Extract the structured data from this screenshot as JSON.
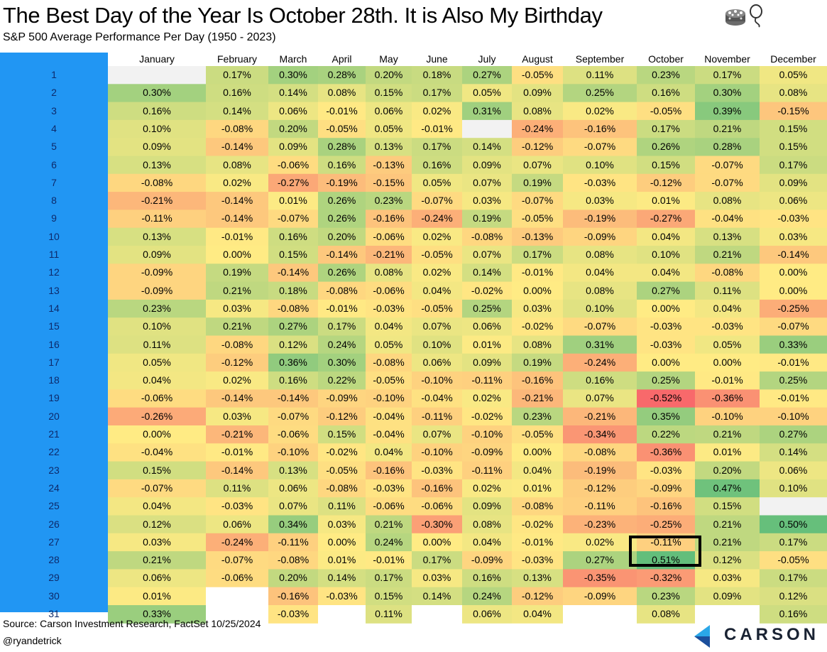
{
  "title": "The Best Day of the Year Is October 28th. It is Also My Birthday",
  "subtitle": "S&P 500 Average Performance Per Day (1950 - 2023)",
  "footer": {
    "source": "Source: Carson Investment Research, FactSet 10/25/2024",
    "handle": "@ryandetrick",
    "logo": "CARSON"
  },
  "icons": [
    "cake-icon",
    "balloon-icon",
    "carson-logo-icon"
  ],
  "colors": {
    "row_label_bar": "#2196f3",
    "scale_negative": "#f8696b",
    "scale_mid": "#ffeb84",
    "scale_positive": "#63be7b",
    "empty_cell": "#f2f2f2"
  },
  "chart_data": {
    "type": "heatmap",
    "title": "The Best Day of the Year Is October 28th. It is Also My Birthday",
    "subtitle": "S&P 500 Average Performance Per Day (1950 - 2023)",
    "columns": [
      "January",
      "February",
      "March",
      "April",
      "May",
      "June",
      "July",
      "August",
      "September",
      "October",
      "November",
      "December"
    ],
    "rows": [
      "1",
      "2",
      "3",
      "4",
      "5",
      "6",
      "7",
      "8",
      "9",
      "10",
      "11",
      "12",
      "13",
      "14",
      "15",
      "16",
      "17",
      "18",
      "19",
      "20",
      "21",
      "22",
      "23",
      "24",
      "25",
      "26",
      "27",
      "28",
      "29",
      "30",
      "31"
    ],
    "highlight": {
      "row": "28",
      "column": "October"
    },
    "color_scale": [
      "#f8696b",
      "#ffeb84",
      "#63be7b"
    ],
    "values": [
      [
        null,
        "0.17%",
        "0.30%",
        "0.28%",
        "0.20%",
        "0.18%",
        "0.27%",
        "-0.05%",
        "0.11%",
        "0.23%",
        "0.17%",
        "0.05%"
      ],
      [
        "0.30%",
        "0.16%",
        "0.14%",
        "0.08%",
        "0.15%",
        "0.17%",
        "0.05%",
        "0.09%",
        "0.25%",
        "0.16%",
        "0.30%",
        "0.08%"
      ],
      [
        "0.16%",
        "0.14%",
        "0.06%",
        "-0.01%",
        "0.06%",
        "0.02%",
        "0.31%",
        "0.08%",
        "0.02%",
        "-0.05%",
        "0.39%",
        "-0.15%"
      ],
      [
        "0.10%",
        "-0.08%",
        "0.20%",
        "-0.05%",
        "0.05%",
        "-0.01%",
        null,
        "-0.24%",
        "-0.16%",
        "0.17%",
        "0.21%",
        "0.15%"
      ],
      [
        "0.09%",
        "-0.14%",
        "0.09%",
        "0.28%",
        "0.13%",
        "0.17%",
        "0.14%",
        "-0.12%",
        "-0.07%",
        "0.26%",
        "0.28%",
        "0.15%"
      ],
      [
        "0.13%",
        "0.08%",
        "-0.06%",
        "0.16%",
        "-0.13%",
        "0.16%",
        "0.09%",
        "0.07%",
        "0.10%",
        "0.15%",
        "-0.07%",
        "0.17%"
      ],
      [
        "-0.08%",
        "0.02%",
        "-0.27%",
        "-0.19%",
        "-0.15%",
        "0.05%",
        "0.07%",
        "0.19%",
        "-0.03%",
        "-0.12%",
        "-0.07%",
        "0.09%"
      ],
      [
        "-0.21%",
        "-0.14%",
        "0.01%",
        "0.26%",
        "0.23%",
        "-0.07%",
        "0.03%",
        "-0.07%",
        "0.03%",
        "0.01%",
        "0.08%",
        "0.06%"
      ],
      [
        "-0.11%",
        "-0.14%",
        "-0.07%",
        "0.26%",
        "-0.16%",
        "-0.24%",
        "0.19%",
        "-0.05%",
        "-0.19%",
        "-0.27%",
        "-0.04%",
        "-0.03%"
      ],
      [
        "0.13%",
        "-0.01%",
        "0.16%",
        "0.20%",
        "-0.06%",
        "0.02%",
        "-0.08%",
        "-0.13%",
        "-0.09%",
        "0.04%",
        "0.13%",
        "0.03%"
      ],
      [
        "0.09%",
        "0.00%",
        "0.15%",
        "-0.14%",
        "-0.21%",
        "-0.05%",
        "0.07%",
        "0.17%",
        "0.08%",
        "0.10%",
        "0.21%",
        "-0.14%"
      ],
      [
        "-0.09%",
        "0.19%",
        "-0.14%",
        "0.26%",
        "0.08%",
        "0.02%",
        "0.14%",
        "-0.01%",
        "0.04%",
        "0.04%",
        "-0.08%",
        "0.00%"
      ],
      [
        "-0.09%",
        "0.21%",
        "0.18%",
        "-0.08%",
        "-0.06%",
        "0.04%",
        "-0.02%",
        "0.00%",
        "0.08%",
        "0.27%",
        "0.11%",
        "0.00%"
      ],
      [
        "0.23%",
        "0.03%",
        "-0.08%",
        "-0.01%",
        "-0.03%",
        "-0.05%",
        "0.25%",
        "0.03%",
        "0.10%",
        "0.00%",
        "0.04%",
        "-0.25%"
      ],
      [
        "0.10%",
        "0.21%",
        "0.27%",
        "0.17%",
        "0.04%",
        "0.07%",
        "0.06%",
        "-0.02%",
        "-0.07%",
        "-0.03%",
        "-0.03%",
        "-0.07%"
      ],
      [
        "0.11%",
        "-0.08%",
        "0.12%",
        "0.24%",
        "0.05%",
        "0.10%",
        "0.01%",
        "0.08%",
        "0.31%",
        "-0.03%",
        "0.05%",
        "0.33%"
      ],
      [
        "0.05%",
        "-0.12%",
        "0.36%",
        "0.30%",
        "-0.08%",
        "0.06%",
        "0.09%",
        "0.19%",
        "-0.24%",
        "0.00%",
        "0.00%",
        "-0.01%"
      ],
      [
        "0.04%",
        "0.02%",
        "0.16%",
        "0.22%",
        "-0.05%",
        "-0.10%",
        "-0.11%",
        "-0.16%",
        "0.16%",
        "0.25%",
        "-0.01%",
        "0.25%"
      ],
      [
        "-0.06%",
        "-0.14%",
        "-0.14%",
        "-0.09%",
        "-0.10%",
        "-0.04%",
        "0.02%",
        "-0.21%",
        "0.07%",
        "-0.52%",
        "-0.36%",
        "-0.01%"
      ],
      [
        "-0.26%",
        "0.03%",
        "-0.07%",
        "-0.12%",
        "-0.04%",
        "-0.11%",
        "-0.02%",
        "0.23%",
        "-0.21%",
        "0.35%",
        "-0.10%",
        "-0.10%"
      ],
      [
        "0.00%",
        "-0.21%",
        "-0.06%",
        "0.15%",
        "-0.04%",
        "0.07%",
        "-0.10%",
        "-0.05%",
        "-0.34%",
        "0.22%",
        "0.21%",
        "0.27%"
      ],
      [
        "-0.04%",
        "-0.01%",
        "-0.10%",
        "-0.02%",
        "0.04%",
        "-0.10%",
        "-0.09%",
        "0.00%",
        "-0.08%",
        "-0.36%",
        "0.01%",
        "0.14%"
      ],
      [
        "0.15%",
        "-0.14%",
        "0.13%",
        "-0.05%",
        "-0.16%",
        "-0.03%",
        "-0.11%",
        "0.04%",
        "-0.19%",
        "-0.03%",
        "0.20%",
        "0.06%"
      ],
      [
        "-0.07%",
        "0.11%",
        "0.06%",
        "-0.08%",
        "-0.03%",
        "-0.16%",
        "0.02%",
        "0.01%",
        "-0.12%",
        "-0.09%",
        "0.47%",
        "0.10%"
      ],
      [
        "0.04%",
        "-0.03%",
        "0.07%",
        "0.11%",
        "-0.06%",
        "-0.06%",
        "0.09%",
        "-0.08%",
        "-0.11%",
        "-0.16%",
        "0.15%",
        null
      ],
      [
        "0.12%",
        "0.06%",
        "0.34%",
        "0.03%",
        "0.21%",
        "-0.30%",
        "0.08%",
        "-0.02%",
        "-0.23%",
        "-0.25%",
        "0.21%",
        "0.50%"
      ],
      [
        "0.03%",
        "-0.24%",
        "-0.11%",
        "0.00%",
        "0.24%",
        "0.00%",
        "0.04%",
        "-0.01%",
        "0.02%",
        "-0.11%",
        "0.21%",
        "0.17%"
      ],
      [
        "0.21%",
        "-0.07%",
        "-0.08%",
        "0.01%",
        "-0.01%",
        "0.17%",
        "-0.09%",
        "-0.03%",
        "0.27%",
        "0.51%",
        "0.12%",
        "-0.05%"
      ],
      [
        "0.06%",
        "-0.06%",
        "0.20%",
        "0.14%",
        "0.17%",
        "0.03%",
        "0.16%",
        "0.13%",
        "-0.35%",
        "-0.32%",
        "0.03%",
        "0.17%"
      ],
      [
        "0.01%",
        null,
        "-0.16%",
        "-0.03%",
        "0.15%",
        "0.14%",
        "0.24%",
        "-0.12%",
        "-0.09%",
        "0.23%",
        "0.09%",
        "0.12%"
      ],
      [
        "0.33%",
        null,
        "-0.03%",
        null,
        "0.11%",
        null,
        "0.06%",
        "0.04%",
        null,
        "0.08%",
        null,
        "0.16%"
      ]
    ]
  }
}
